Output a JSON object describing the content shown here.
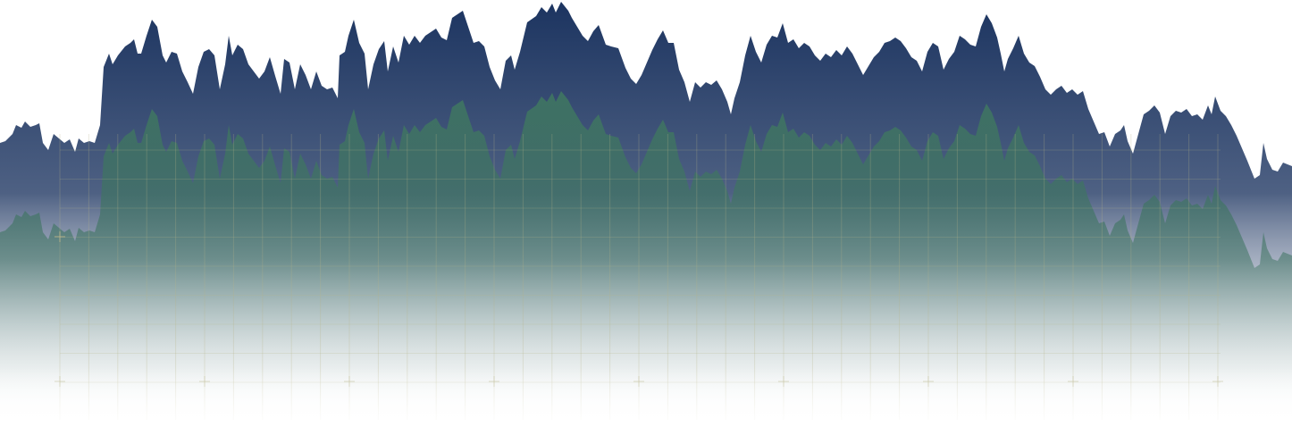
{
  "artwork": {
    "subject": "mountain-ridge-silhouettes",
    "colors": {
      "background": "#ffffff",
      "back_ridge_top": "#1c3460",
      "back_ridge_bottom": "#ffffff",
      "front_ridge_top": "#3f7462",
      "front_ridge_bottom": "#ffffff",
      "grid_line": "#b8b48a",
      "grid_mark": "#c8c2a0"
    }
  }
}
